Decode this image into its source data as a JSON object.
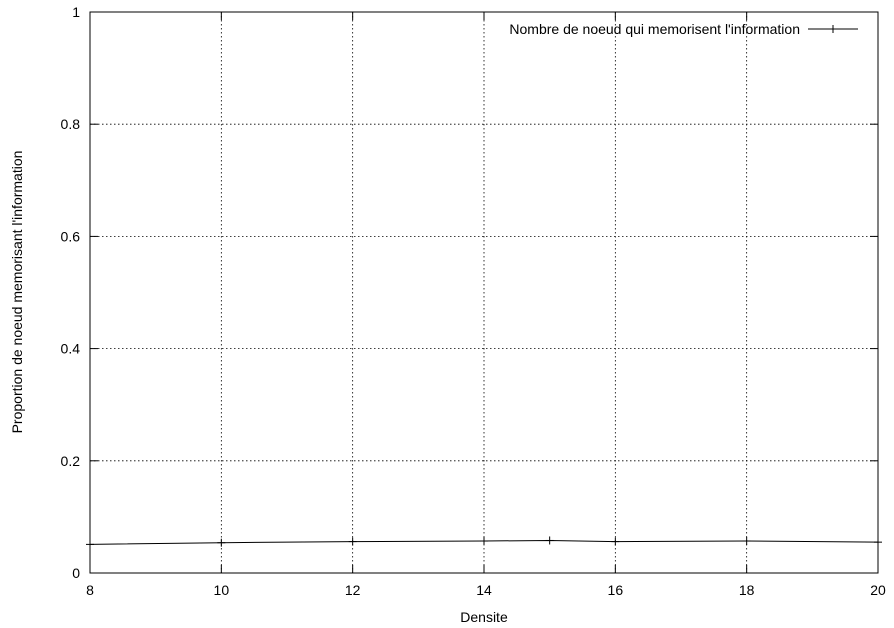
{
  "chart_data": {
    "type": "line",
    "title": "",
    "xlabel": "Densite",
    "ylabel": "Proportion de noeud memorisant l'information",
    "xlim": [
      8,
      20
    ],
    "ylim": [
      0,
      1
    ],
    "xticks": [
      8,
      10,
      12,
      14,
      16,
      18,
      20
    ],
    "yticks": [
      0,
      0.2,
      0.4,
      0.6,
      0.8,
      1
    ],
    "ytick_labels": [
      "0",
      "0.2",
      "0.4",
      "0.6",
      "0.8",
      "1"
    ],
    "grid": true,
    "legend_position": "top-right",
    "series": [
      {
        "name": "Nombre de noeud qui memorisent l'information",
        "marker": "+",
        "color": "#000000",
        "x": [
          8,
          10,
          12,
          14,
          15,
          16,
          18,
          20
        ],
        "y": [
          0.051,
          0.054,
          0.056,
          0.057,
          0.058,
          0.056,
          0.057,
          0.055
        ]
      }
    ]
  }
}
